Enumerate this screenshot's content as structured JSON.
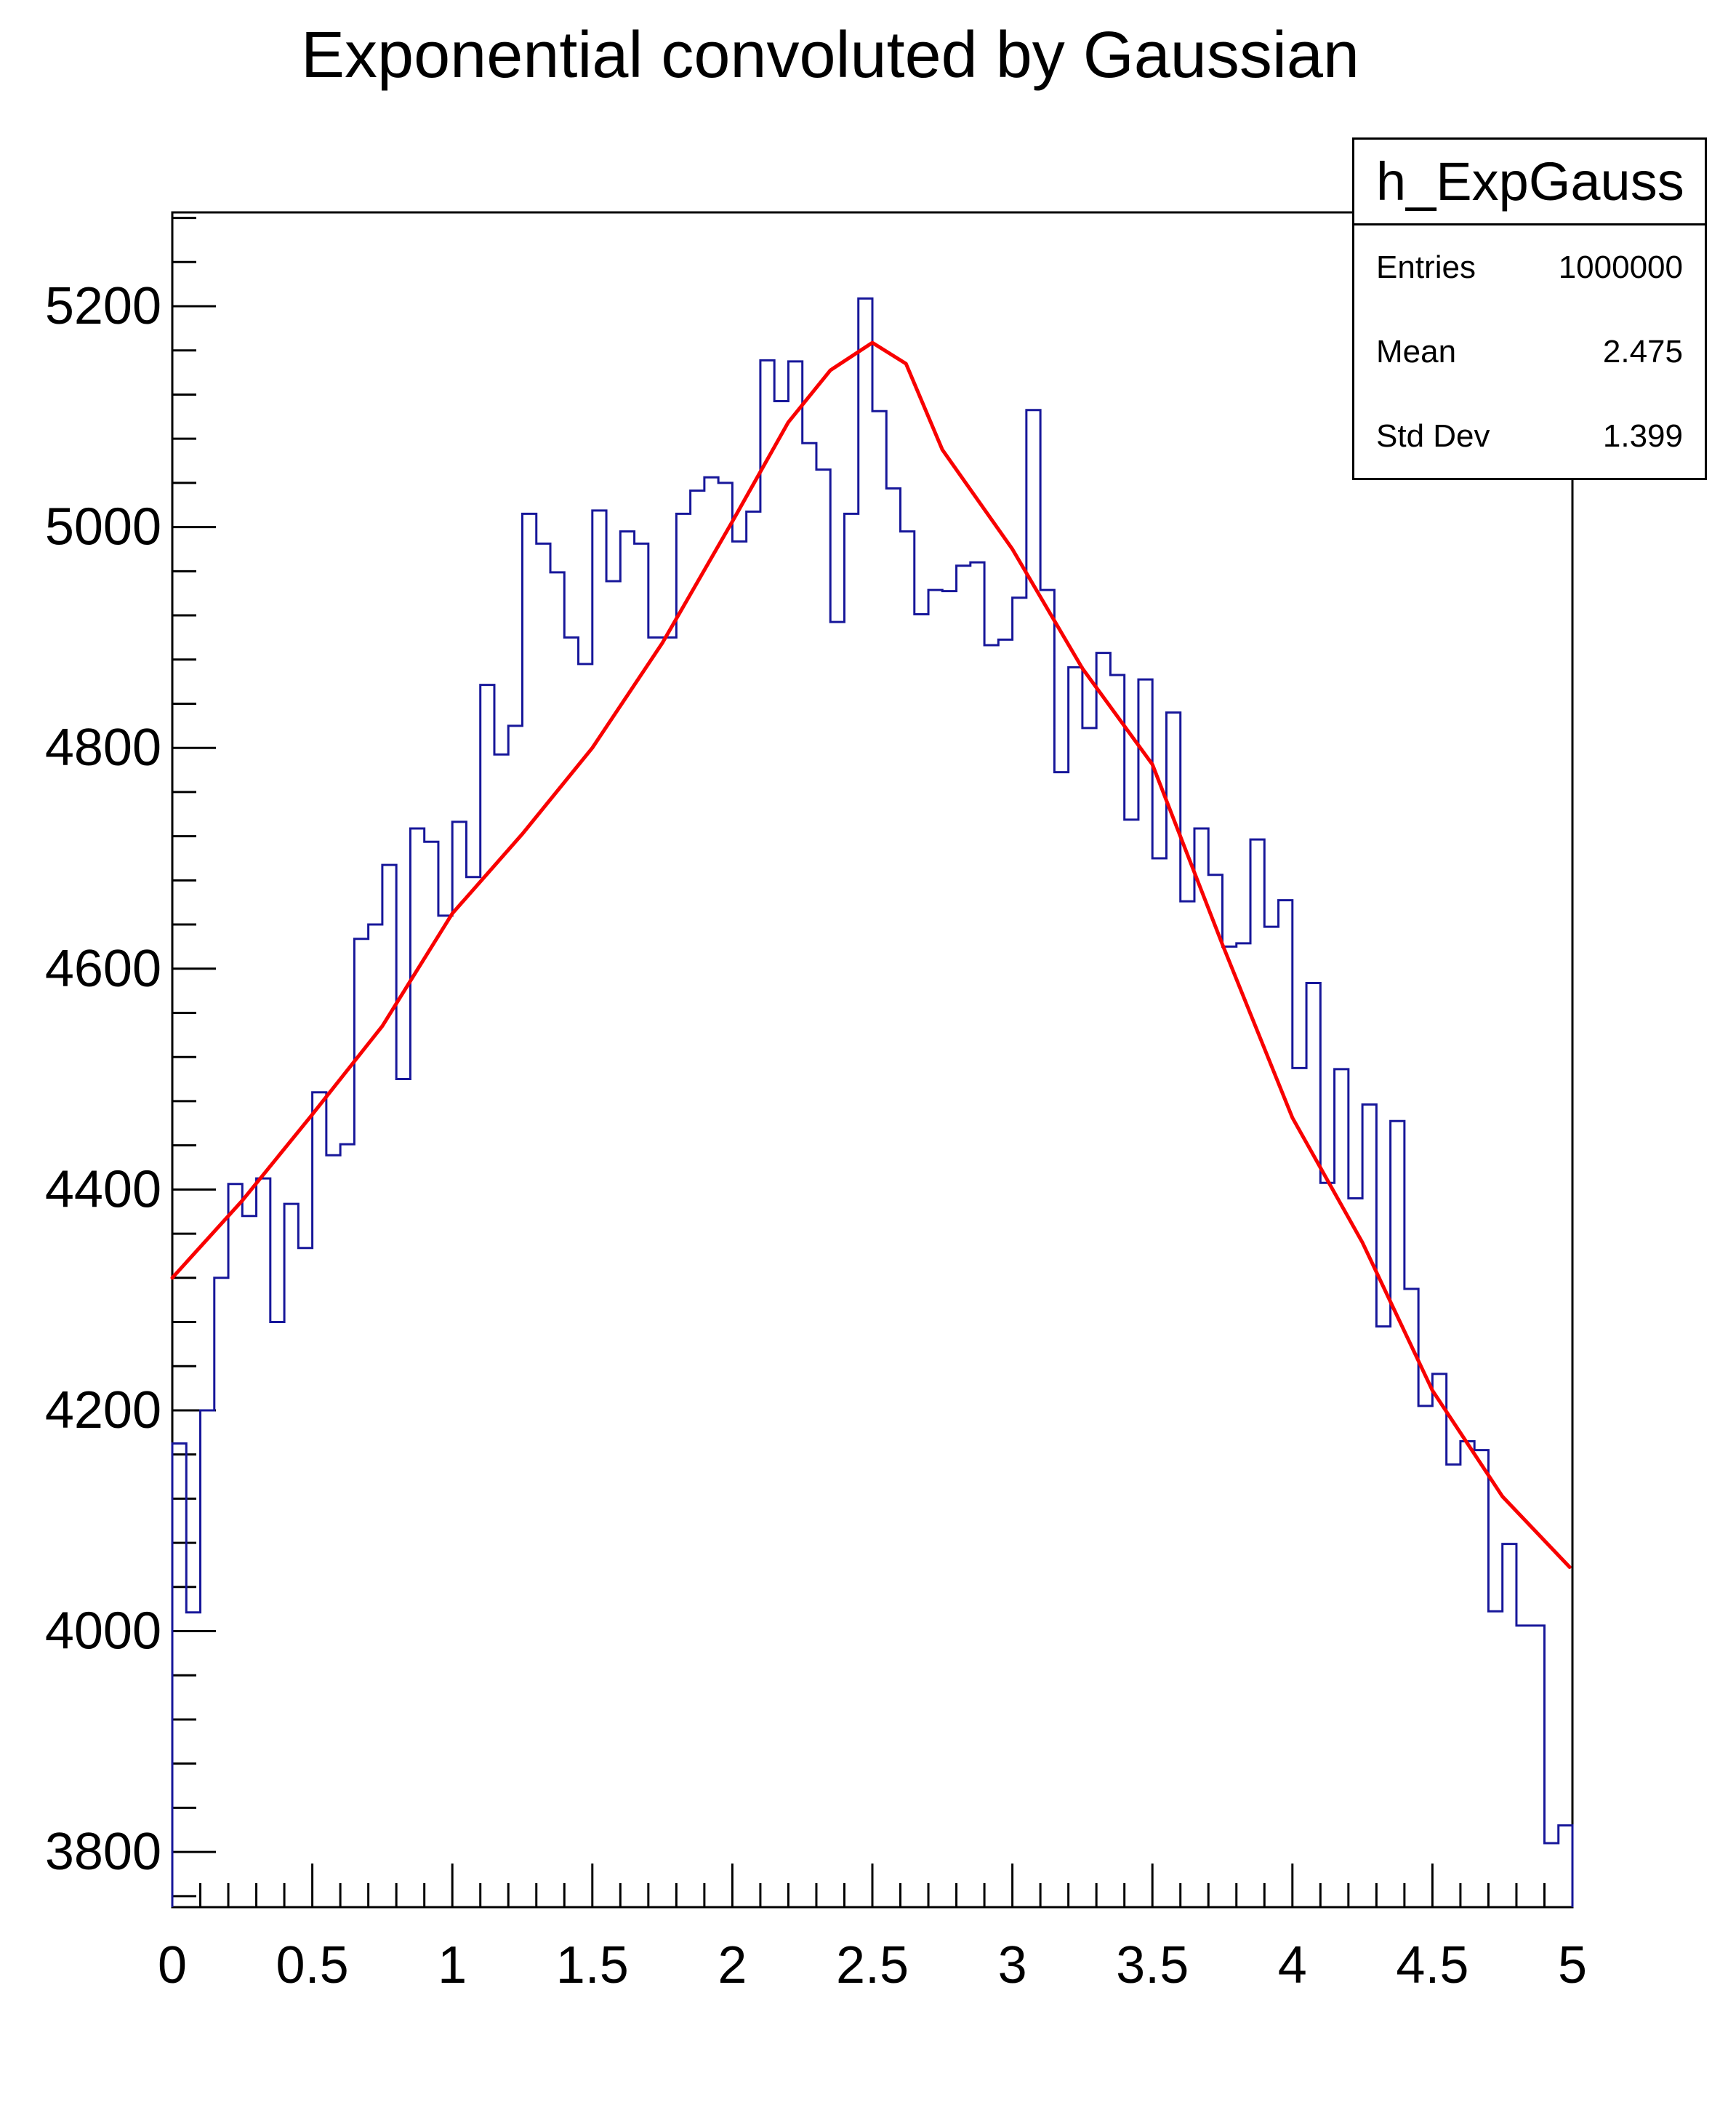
{
  "title": "Exponential convoluted by Gaussian",
  "stats_box": {
    "title": "h_ExpGauss",
    "rows": [
      {
        "label": "Entries",
        "value": "1000000"
      },
      {
        "label": "Mean",
        "value": "2.475"
      },
      {
        "label": "Std Dev",
        "value": "1.399"
      }
    ]
  },
  "colors": {
    "histogram_line": "#17179a",
    "fit_line": "#f80000",
    "axis": "#000000",
    "background": "#ffffff"
  },
  "chart_data": {
    "type": "bar",
    "subtype": "step-histogram-with-fit",
    "title": "Exponential convoluted by Gaussian",
    "xlabel": "",
    "ylabel": "",
    "x_range": [
      0,
      5
    ],
    "y_range": [
      3750,
      5285
    ],
    "grid": false,
    "bin_start": 0,
    "bin_width": 0.05,
    "values": [
      4170,
      4017,
      4200,
      4320,
      4405,
      4376,
      4410,
      4280,
      4387,
      4347,
      4488,
      4431,
      4441,
      4627,
      4640,
      4694,
      4500,
      4727,
      4715,
      4648,
      4733,
      4683,
      4857,
      4794,
      4820,
      5012,
      4985,
      4959,
      4900,
      4876,
      5015,
      4951,
      4996,
      4985,
      4900,
      4900,
      5012,
      5033,
      5045,
      5040,
      4987,
      5014,
      5151,
      5114,
      5150,
      5076,
      5052,
      4914,
      5012,
      5207,
      5105,
      5035,
      4996,
      4921,
      4943,
      4942,
      4965,
      4968,
      4893,
      4898,
      4936,
      5106,
      4943,
      4778,
      4873,
      4818,
      4886,
      4866,
      4735,
      4862,
      4700,
      4832,
      4661,
      4727,
      4685,
      4620,
      4623,
      4717,
      4638,
      4662,
      4510,
      4587,
      4406,
      4509,
      4392,
      4477,
      4276,
      4462,
      4310,
      4204,
      4233,
      4151,
      4172,
      4164,
      4018,
      4079,
      4005,
      4005,
      3808,
      3824
    ],
    "fit_curve": {
      "name": "exponential-convoluted-gaussian-fit",
      "points": [
        [
          0.0,
          4320
        ],
        [
          0.25,
          4390
        ],
        [
          0.5,
          4468
        ],
        [
          0.75,
          4548
        ],
        [
          1.0,
          4650
        ],
        [
          1.25,
          4722
        ],
        [
          1.5,
          4800
        ],
        [
          1.75,
          4895
        ],
        [
          2.0,
          5005
        ],
        [
          2.2,
          5095
        ],
        [
          2.35,
          5142
        ],
        [
          2.5,
          5167
        ],
        [
          2.62,
          5148
        ],
        [
          2.75,
          5070
        ],
        [
          3.0,
          4980
        ],
        [
          3.25,
          4872
        ],
        [
          3.5,
          4785
        ],
        [
          3.75,
          4622
        ],
        [
          4.0,
          4465
        ],
        [
          4.25,
          4352
        ],
        [
          4.5,
          4218
        ],
        [
          4.75,
          4122
        ],
        [
          4.99,
          4058
        ]
      ]
    },
    "x_ticks": {
      "major_step": 0.5,
      "minor_step": 0.1,
      "major_values": [
        0,
        0.5,
        1,
        1.5,
        2,
        2.5,
        3,
        3.5,
        4,
        4.5,
        5
      ],
      "labels": [
        "0",
        "0.5",
        "1",
        "1.5",
        "2",
        "2.5",
        "3",
        "3.5",
        "4",
        "4.5",
        "5"
      ]
    },
    "y_ticks": {
      "major_step": 200,
      "minor_step": 40,
      "major_values": [
        3800,
        4000,
        4200,
        4400,
        4600,
        4800,
        5000,
        5200
      ],
      "labels": [
        "3800",
        "4000",
        "4200",
        "4400",
        "4600",
        "4800",
        "5000",
        "5200"
      ]
    },
    "legend_position": "none"
  }
}
